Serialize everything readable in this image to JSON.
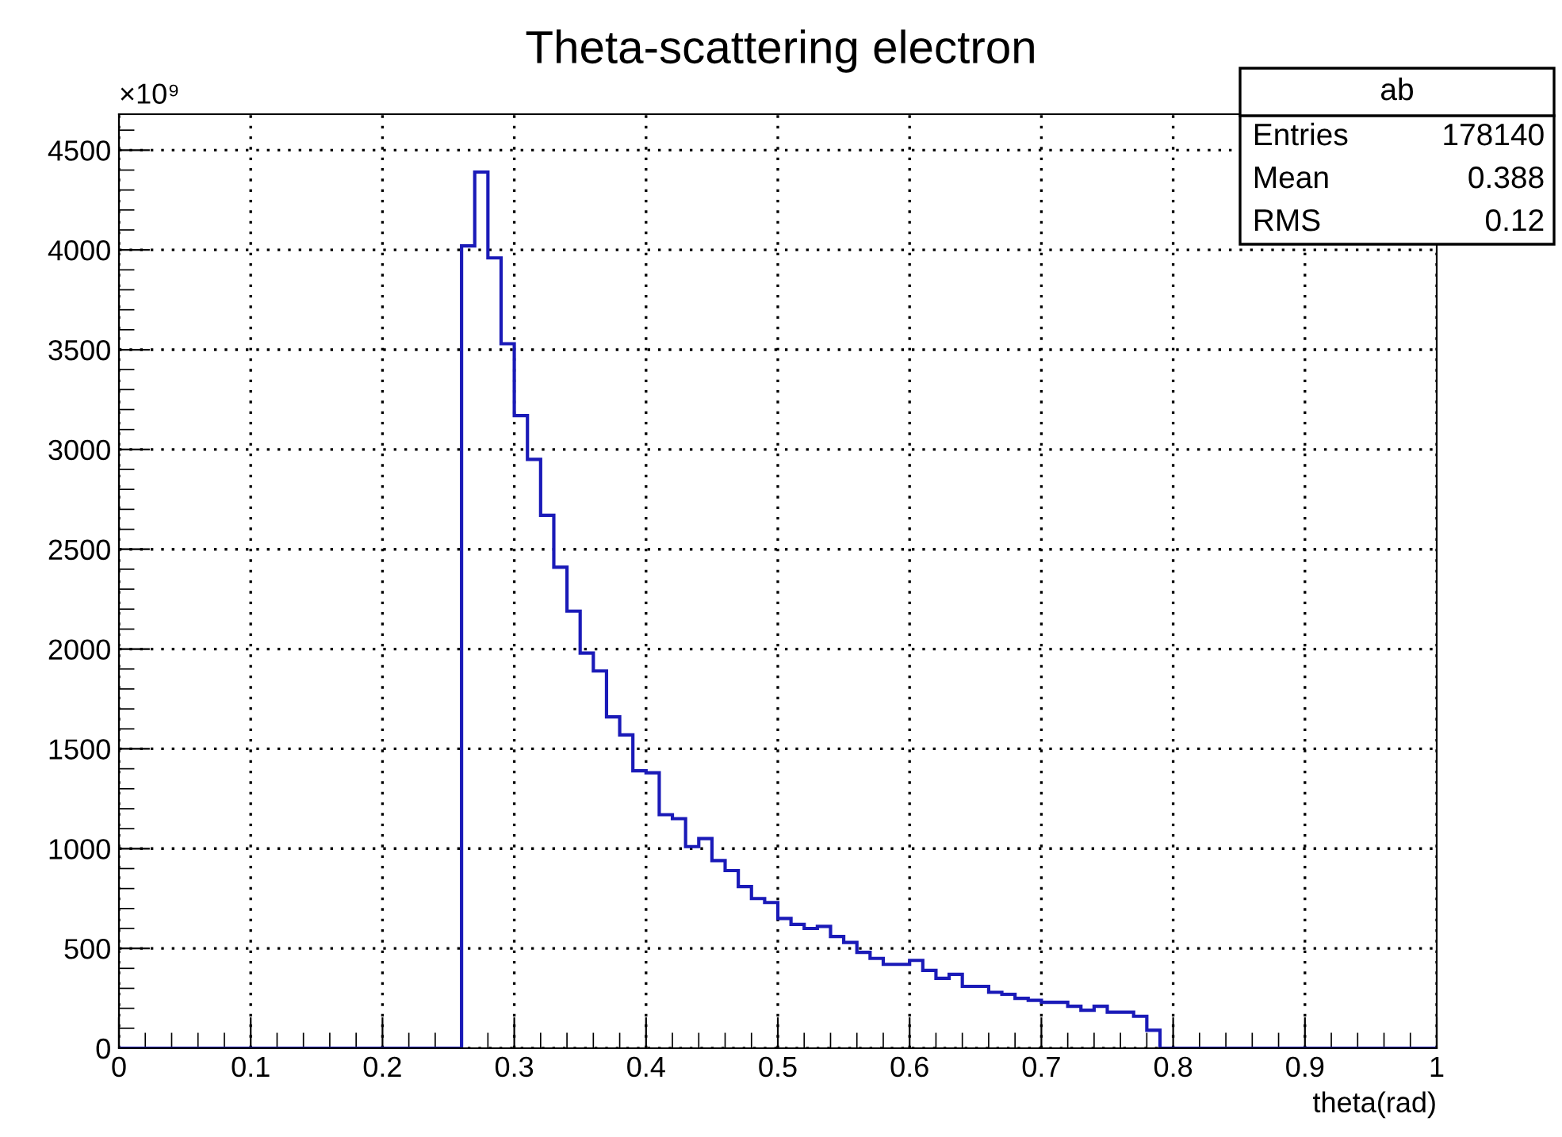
{
  "chart_data": {
    "type": "histogram",
    "title": "Theta-scattering electron",
    "xlabel": "theta(rad)",
    "bins": [
      0,
      0.01,
      0.02,
      0.03,
      0.04,
      0.05,
      0.06,
      0.07,
      0.08,
      0.09,
      0.1,
      0.11,
      0.12,
      0.13,
      0.14,
      0.15,
      0.16,
      0.17,
      0.18,
      0.19,
      0.2,
      0.21,
      0.22,
      0.23,
      0.24,
      0.25,
      0.26,
      0.27,
      0.28,
      0.29,
      0.3,
      0.31,
      0.32,
      0.33,
      0.34,
      0.35,
      0.36,
      0.37,
      0.38,
      0.39,
      0.4,
      0.41,
      0.42,
      0.43,
      0.44,
      0.45,
      0.46,
      0.47,
      0.48,
      0.49,
      0.5,
      0.51,
      0.52,
      0.53,
      0.54,
      0.55,
      0.56,
      0.57,
      0.58,
      0.59,
      0.6,
      0.61,
      0.62,
      0.63,
      0.64,
      0.65,
      0.66,
      0.67,
      0.68,
      0.69,
      0.7,
      0.71,
      0.72,
      0.73,
      0.74,
      0.75,
      0.76,
      0.77,
      0.78,
      0.79,
      0.8,
      0.81,
      0.82,
      0.83,
      0.84,
      0.85,
      0.86,
      0.87,
      0.88,
      0.89,
      0.9,
      0.91,
      0.92,
      0.93,
      0.94,
      0.95,
      0.96,
      0.97,
      0.98,
      0.99,
      1
    ],
    "values": [
      0,
      0,
      0,
      0,
      0,
      0,
      0,
      0,
      0,
      0,
      0,
      0,
      0,
      0,
      0,
      0,
      0,
      0,
      0,
      0,
      0,
      0,
      0,
      0,
      0,
      0,
      4020,
      4390,
      3960,
      3530,
      3170,
      2950,
      2670,
      2410,
      2190,
      1980,
      1890,
      1660,
      1570,
      1390,
      1380,
      1170,
      1150,
      1010,
      1050,
      940,
      890,
      810,
      750,
      730,
      650,
      620,
      600,
      610,
      560,
      530,
      480,
      450,
      420,
      420,
      440,
      390,
      350,
      370,
      310,
      310,
      280,
      270,
      250,
      240,
      230,
      230,
      210,
      190,
      210,
      180,
      180,
      160,
      90,
      0,
      0,
      0,
      0,
      0,
      0,
      0,
      0,
      0,
      0,
      0,
      0,
      0,
      0,
      0,
      0,
      0,
      0,
      0,
      0,
      0
    ],
    "color": "#1a1ab8",
    "xlim": [
      0,
      1
    ],
    "xticks": [
      0,
      0.1,
      0.2,
      0.3,
      0.4,
      0.5,
      0.6,
      0.7,
      0.8,
      0.9,
      1
    ],
    "ylim": [
      0,
      4680
    ],
    "yticks": [
      0,
      500,
      1000,
      1500,
      2000,
      2500,
      3000,
      3500,
      4000,
      4500
    ],
    "grid": true,
    "legend": false,
    "annotations": [
      "×10⁹",
      "ab",
      "Entries",
      "178140",
      "Mean",
      "0.388",
      "RMS",
      "0.12"
    ]
  }
}
